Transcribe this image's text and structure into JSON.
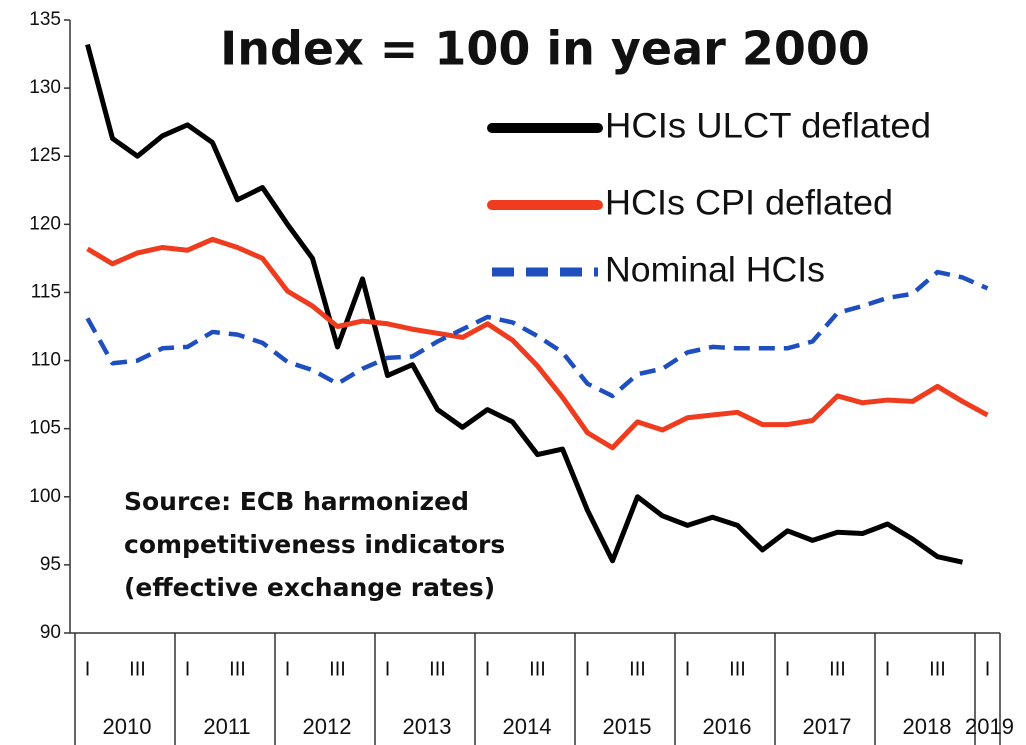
{
  "chart_data": {
    "type": "line",
    "title": "Index = 100 in year 2000",
    "annotation": [
      "Source:  ECB harmonized",
      "competitiveness indicators",
      "(effective exchange rates)"
    ],
    "categories": [
      "I",
      null,
      "III",
      null,
      "I",
      null,
      "III",
      null,
      "I",
      null,
      "III",
      null,
      "I",
      null,
      "III",
      null,
      "I",
      null,
      "III",
      null,
      "I",
      null,
      "III",
      null,
      "I",
      null,
      "III",
      null,
      "I",
      null,
      "III",
      null,
      "I",
      null,
      "III",
      null,
      "I"
    ],
    "year_labels": [
      "2010",
      "2011",
      "2012",
      "2013",
      "2014",
      "2015",
      "2016",
      "2017",
      "2018",
      "2019"
    ],
    "series": [
      {
        "name": "HCIs ULCT deflated",
        "color": "#000000",
        "dash": false,
        "values": [
          133.2,
          126.3,
          125,
          126.5,
          127.3,
          126,
          121.8,
          122.7,
          120,
          117.5,
          111,
          116,
          108.9,
          109.7,
          106.4,
          105.1,
          106.4,
          105.5,
          103.1,
          103.5,
          99,
          95.3,
          100,
          98.6,
          97.9,
          98.5,
          97.9,
          96.1,
          97.5,
          96.8,
          97.4,
          97.3,
          98,
          96.9,
          95.6,
          95.2,
          null
        ]
      },
      {
        "name": "HCIs CPI deflated",
        "color": "#f03c1e",
        "dash": false,
        "values": [
          118.2,
          117.1,
          117.9,
          118.3,
          118.1,
          118.9,
          118.3,
          117.5,
          115.1,
          114,
          112.5,
          112.9,
          112.7,
          112.3,
          112,
          111.7,
          112.7,
          111.5,
          109.6,
          107.3,
          104.7,
          103.6,
          105.5,
          104.9,
          105.8,
          106,
          106.2,
          105.3,
          105.3,
          105.6,
          107.4,
          106.9,
          107.1,
          107,
          108.1,
          107,
          106
        ]
      },
      {
        "name": "Nominal HCIs",
        "color": "#1f4fbf",
        "dash": true,
        "values": [
          113.1,
          109.8,
          110,
          110.9,
          111,
          112.1,
          111.9,
          111.3,
          109.9,
          109.3,
          108.3,
          109.4,
          110.2,
          110.3,
          111.4,
          112.3,
          113.2,
          112.8,
          111.8,
          110.6,
          108.3,
          107.4,
          109,
          109.4,
          110.6,
          111,
          110.9,
          110.9,
          110.9,
          111.4,
          113.5,
          114,
          114.6,
          114.9,
          116.5,
          116.1,
          115.3
        ]
      }
    ],
    "ylim": [
      90,
      135
    ],
    "yticks": [
      90,
      95,
      100,
      105,
      110,
      115,
      120,
      125,
      130,
      135
    ],
    "grid": false,
    "legend": "top-right"
  }
}
